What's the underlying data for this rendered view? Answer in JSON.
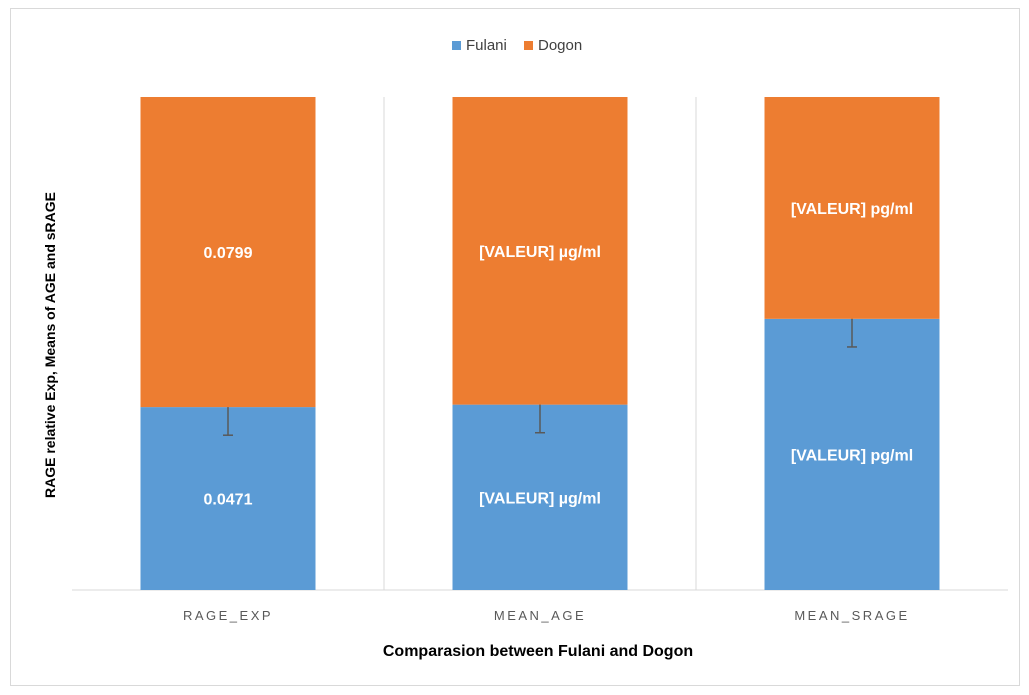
{
  "colors": {
    "fulani": "#5b9bd5",
    "dogon": "#ed7d31",
    "grid": "#d9d9d9",
    "axis_text": "#595959",
    "error_bar": "#595959"
  },
  "chart_data": {
    "type": "bar",
    "stacked": true,
    "normalized": true,
    "categories": [
      "RAGE_EXP",
      "MEAN_AGE",
      "MEAN_SRAGE"
    ],
    "xlabel": "Comparasion between Fulani and Dogon",
    "ylabel": "RAGE relative Exp, Means of AGE and sRAGE",
    "legend_position": "top",
    "grid": true,
    "series": [
      {
        "name": "Fulani",
        "color": "#5b9bd5",
        "share": [
          0.371,
          0.376,
          0.55
        ],
        "data_labels": [
          "0.0471",
          "[VALEUR] µg/ml",
          "[VALEUR] pg/ml"
        ],
        "error_bar_halfwidth": [
          0.057,
          0.057,
          0.057
        ]
      },
      {
        "name": "Dogon",
        "color": "#ed7d31",
        "share": [
          0.629,
          0.624,
          0.45
        ],
        "data_labels": [
          "0.0799",
          "[VALEUR] µg/ml",
          "[VALEUR] pg/ml"
        ]
      }
    ]
  }
}
